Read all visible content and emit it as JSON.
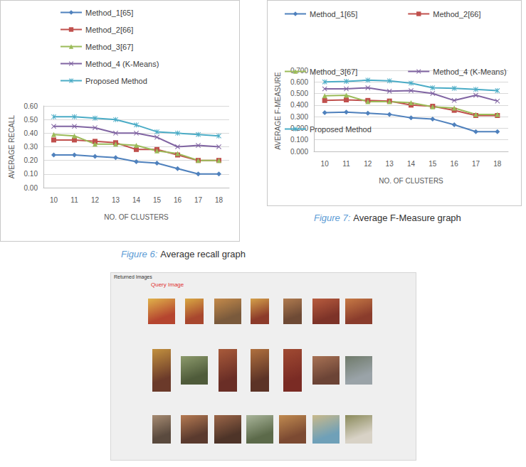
{
  "chart_data": [
    {
      "type": "line",
      "figure_label": "Figure 6:",
      "caption": "Average recall graph",
      "x_label": "NO. OF CLUSTERS",
      "y_label": "AVERAGE RECALL",
      "categories": [
        "10",
        "11",
        "12",
        "13",
        "14",
        "15",
        "16",
        "17",
        "18"
      ],
      "series": [
        {
          "name": "Method_1[65]",
          "color": "#4f81bd",
          "marker": "diamond",
          "values": [
            0.24,
            0.24,
            0.23,
            0.22,
            0.19,
            0.18,
            0.14,
            0.1,
            0.1
          ]
        },
        {
          "name": "Method_2[66]",
          "color": "#c0504d",
          "marker": "square",
          "values": [
            0.35,
            0.35,
            0.34,
            0.33,
            0.28,
            0.28,
            0.24,
            0.2,
            0.2
          ]
        },
        {
          "name": "Method_3[67]",
          "color": "#9bbb59",
          "marker": "triangle",
          "values": [
            0.39,
            0.38,
            0.32,
            0.32,
            0.31,
            0.27,
            0.25,
            0.2,
            0.2
          ]
        },
        {
          "name": "Method_4 (K-Means)",
          "color": "#8064a2",
          "marker": "x",
          "values": [
            0.45,
            0.45,
            0.44,
            0.4,
            0.4,
            0.37,
            0.3,
            0.31,
            0.3
          ]
        },
        {
          "name": "Proposed Method",
          "color": "#4bacc6",
          "marker": "star",
          "values": [
            0.52,
            0.52,
            0.51,
            0.5,
            0.46,
            0.41,
            0.4,
            0.39,
            0.38
          ]
        }
      ],
      "ylim": [
        0,
        0.6
      ],
      "yticks": [
        {
          "value": 0,
          "label": "0.00"
        },
        {
          "value": 0.1,
          "label": "0.10"
        },
        {
          "value": 0.2,
          "label": "0.20"
        },
        {
          "value": 0.3,
          "label": "0.30"
        },
        {
          "value": 0.4,
          "label": "0.40"
        },
        {
          "value": 0.5,
          "label": "0.50"
        },
        {
          "value": 0.6,
          "label": "0.60"
        }
      ],
      "grid": true,
      "legend": "top"
    },
    {
      "type": "line",
      "figure_label": "Figure 7:",
      "caption": "Average F-Measure graph",
      "x_label": "NO. OF CLUSTERS",
      "y_label": "AVERAGE F-MEASURE",
      "categories": [
        "10",
        "11",
        "12",
        "13",
        "14",
        "15",
        "16",
        "17",
        "18"
      ],
      "series": [
        {
          "name": "Method_1[65]",
          "color": "#4f81bd",
          "marker": "diamond",
          "values": [
            0.335,
            0.34,
            0.33,
            0.32,
            0.29,
            0.28,
            0.23,
            0.17,
            0.17
          ]
        },
        {
          "name": "Method_2[66]",
          "color": "#c0504d",
          "marker": "square",
          "values": [
            0.44,
            0.445,
            0.44,
            0.435,
            0.4,
            0.39,
            0.355,
            0.31,
            0.31
          ]
        },
        {
          "name": "Method_3[67]",
          "color": "#9bbb59",
          "marker": "triangle",
          "values": [
            0.48,
            0.485,
            0.43,
            0.43,
            0.42,
            0.385,
            0.375,
            0.32,
            0.32
          ]
        },
        {
          "name": "Method_4 (K-Means)",
          "color": "#8064a2",
          "marker": "x",
          "values": [
            0.54,
            0.54,
            0.55,
            0.52,
            0.525,
            0.5,
            0.44,
            0.485,
            0.435
          ]
        },
        {
          "name": "Proposed Method",
          "color": "#4bacc6",
          "marker": "star",
          "values": [
            0.6,
            0.605,
            0.615,
            0.61,
            0.59,
            0.55,
            0.545,
            0.535,
            0.525
          ]
        }
      ],
      "ylim": [
        0,
        0.7
      ],
      "yticks": [
        {
          "value": 0,
          "label": "0.000"
        },
        {
          "value": 0.1,
          "label": "0.100"
        },
        {
          "value": 0.2,
          "label": "0.200"
        },
        {
          "value": 0.3,
          "label": "0.300"
        },
        {
          "value": 0.4,
          "label": "0.400"
        },
        {
          "value": 0.5,
          "label": "0.500"
        },
        {
          "value": 0.6,
          "label": "0.600"
        },
        {
          "value": 0.7,
          "label": "0.700"
        }
      ],
      "grid": true,
      "legend": "top"
    }
  ],
  "screenshot": {
    "title": "Returned Images",
    "query_label": "Query Image"
  }
}
